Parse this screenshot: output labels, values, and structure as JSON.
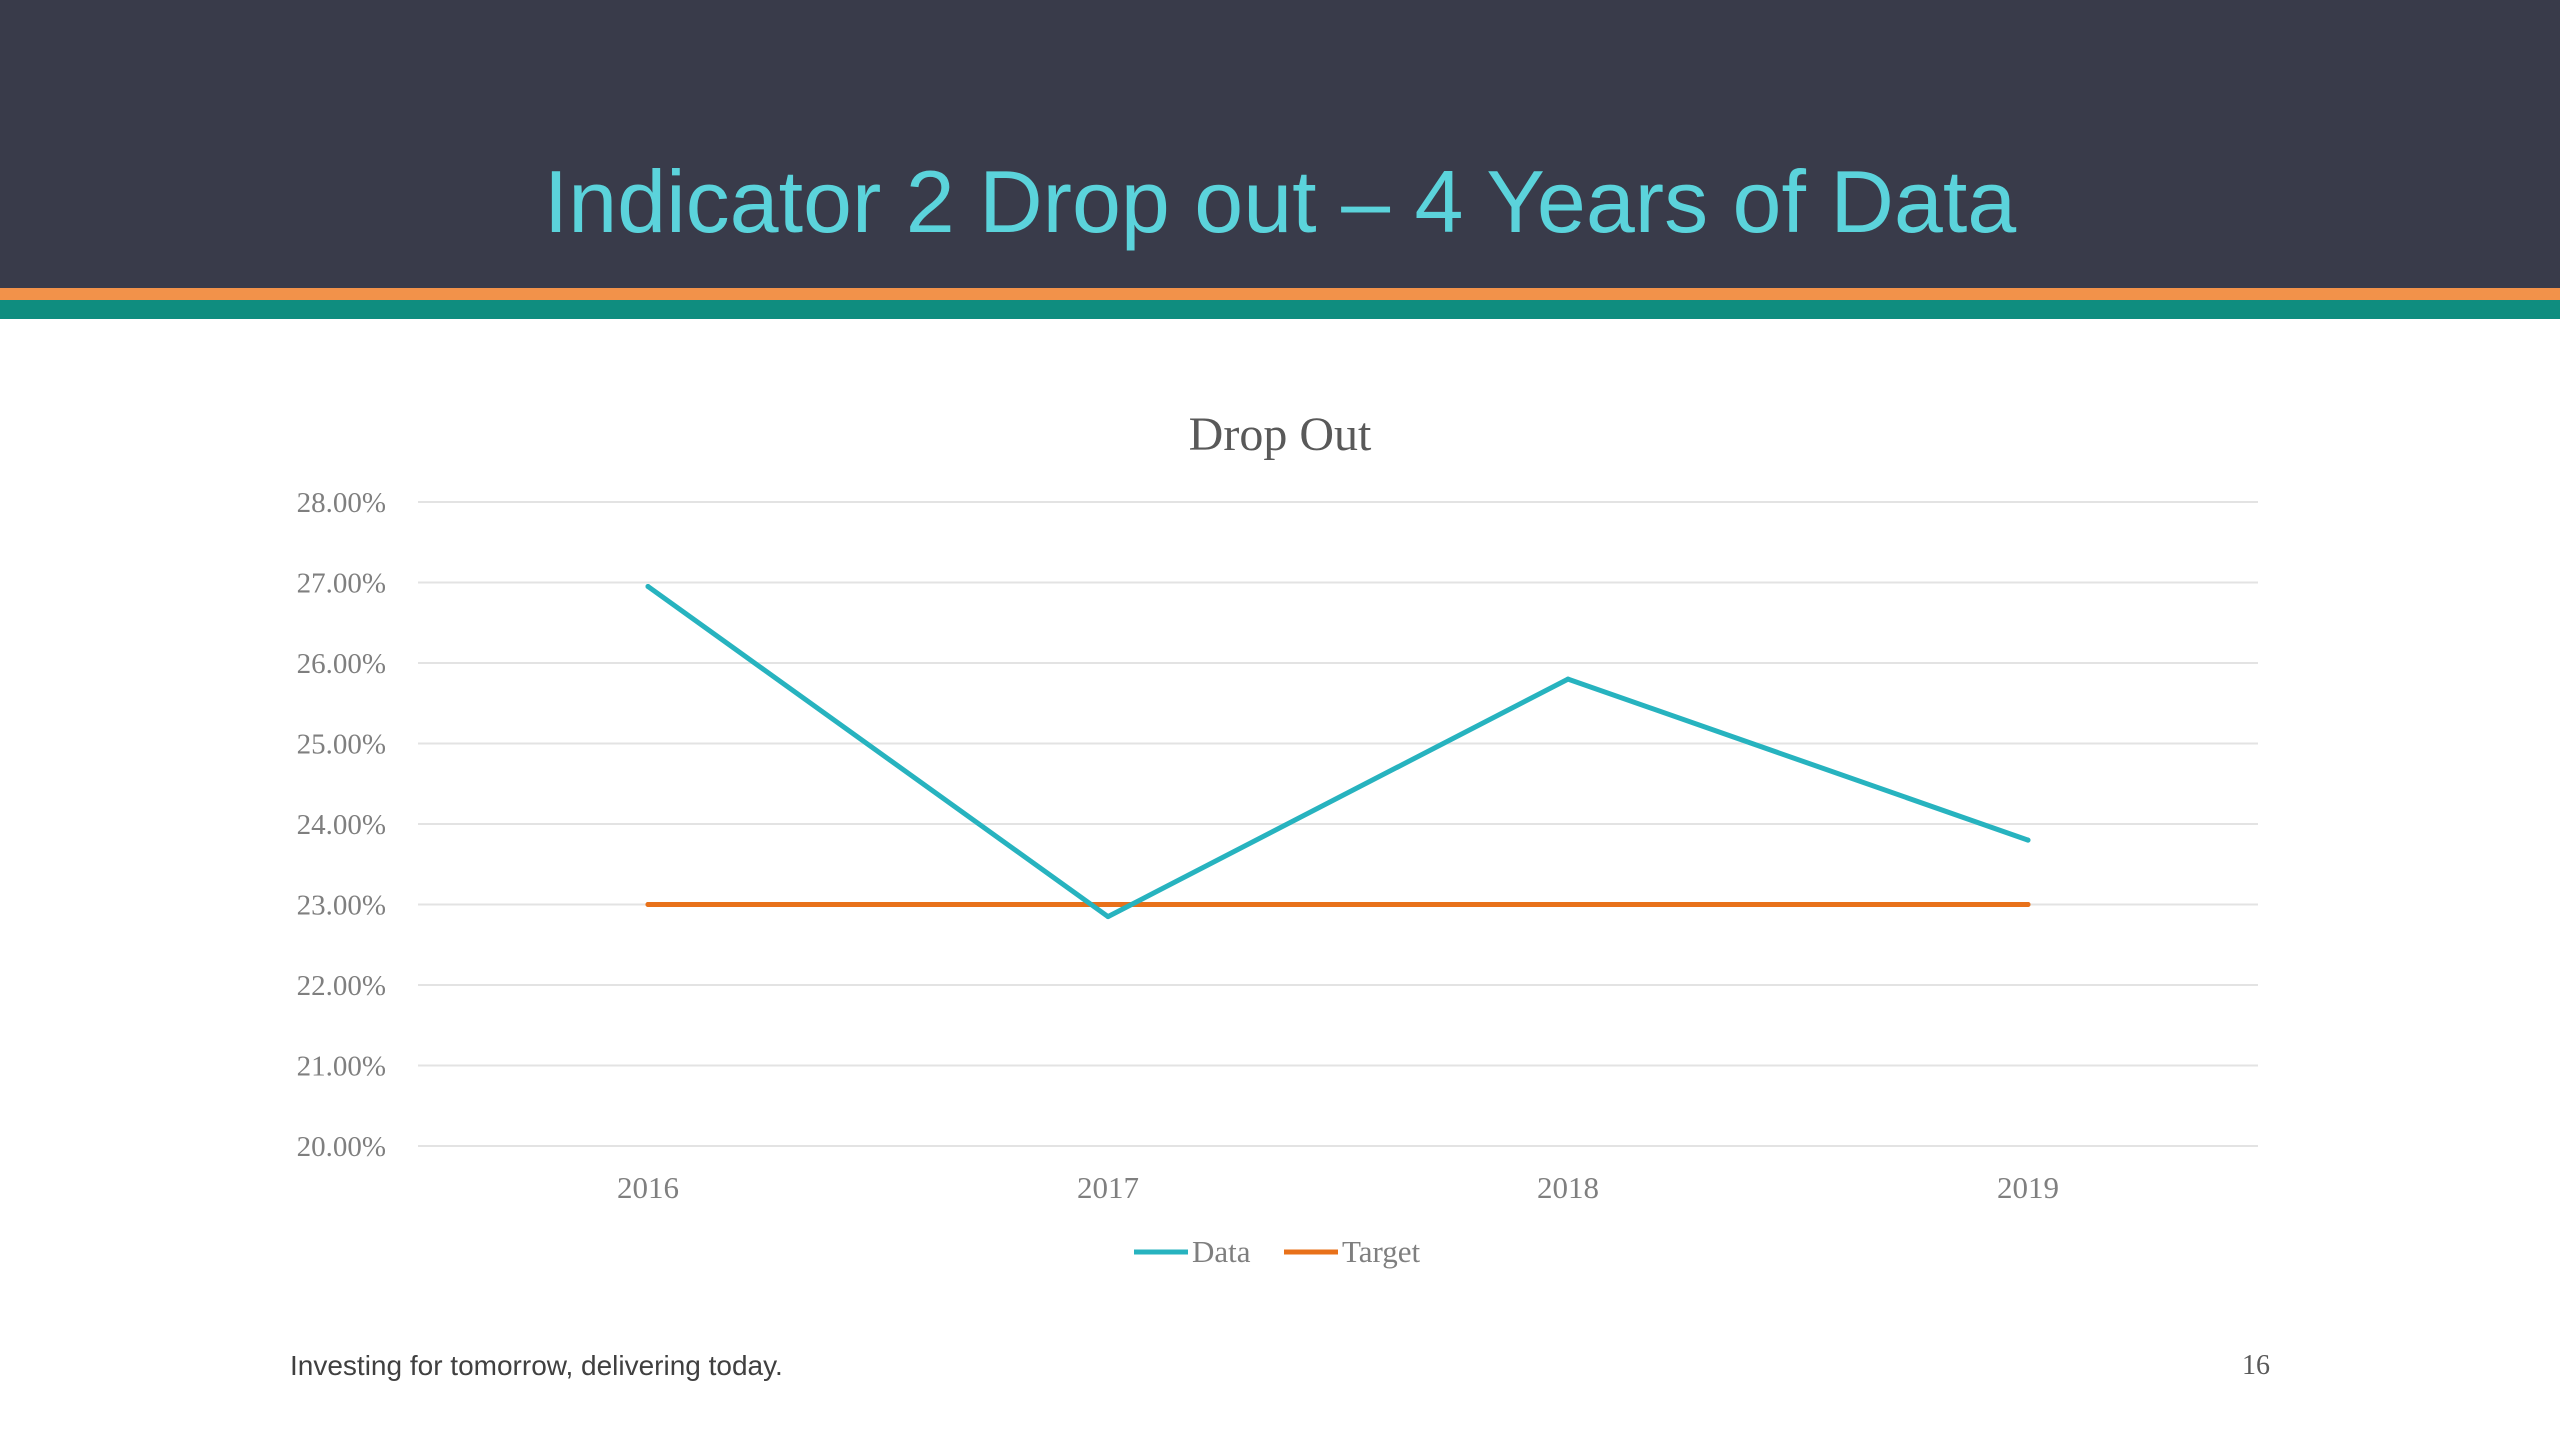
{
  "slide": {
    "title": "Indicator 2 Drop out – 4 Years of Data",
    "footer_text": "Investing for tomorrow, delivering today.",
    "page_number": "16",
    "colors": {
      "header_bg": "#393b4a",
      "title": "#5bd3db",
      "stripe_top": "#f2924a",
      "stripe_bottom": "#0f8d7f"
    }
  },
  "chart_data": {
    "type": "line",
    "title": "Drop Out",
    "xlabel": "",
    "ylabel": "",
    "categories": [
      "2016",
      "2017",
      "2018",
      "2019"
    ],
    "series": [
      {
        "name": "Data",
        "color": "#27b3bf",
        "values": [
          26.95,
          22.85,
          25.8,
          23.8
        ]
      },
      {
        "name": "Target",
        "color": "#e8711a",
        "values": [
          23.0,
          23.0,
          23.0,
          23.0
        ]
      }
    ],
    "ylim": [
      20,
      28
    ],
    "yticks": [
      "20.00%",
      "21.00%",
      "22.00%",
      "23.00%",
      "24.00%",
      "25.00%",
      "26.00%",
      "27.00%",
      "28.00%"
    ],
    "grid": true,
    "legend_position": "bottom"
  }
}
